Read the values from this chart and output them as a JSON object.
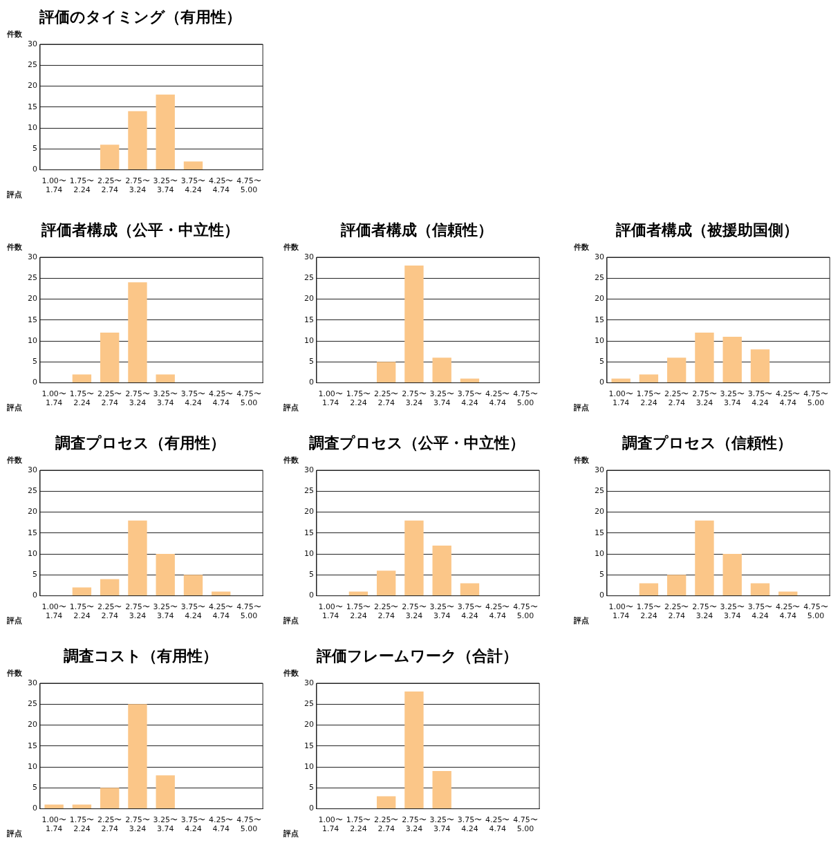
{
  "chart_data": [
    {
      "type": "bar",
      "title": "評価のタイミング（有用性）",
      "ylabel": "件数",
      "xlabel": "評点",
      "categories": [
        "1.00〜\n1.74",
        "1.75〜\n2.24",
        "2.25〜\n2.74",
        "2.75〜\n3.24",
        "3.25〜\n3.74",
        "3.75〜\n4.24",
        "4.25〜\n4.74",
        "4.75〜\n5.00"
      ],
      "values": [
        0,
        0,
        6,
        14,
        18,
        2,
        0,
        0
      ],
      "color": "#fbc688",
      "ylim": [
        0,
        30
      ],
      "yticks": [
        0,
        5,
        10,
        15,
        20,
        25,
        30
      ],
      "grid": "y",
      "legend": false
    },
    {
      "type": "bar",
      "title": "評価者構成（公平・中立性）",
      "ylabel": "件数",
      "xlabel": "評点",
      "categories": [
        "1.00〜\n1.74",
        "1.75〜\n2.24",
        "2.25〜\n2.74",
        "2.75〜\n3.24",
        "3.25〜\n3.74",
        "3.75〜\n4.24",
        "4.25〜\n4.74",
        "4.75〜\n5.00"
      ],
      "values": [
        0,
        2,
        12,
        24,
        2,
        0,
        0,
        0
      ],
      "color": "#fbc688",
      "ylim": [
        0,
        30
      ],
      "yticks": [
        0,
        5,
        10,
        15,
        20,
        25,
        30
      ],
      "grid": "y",
      "legend": false
    },
    {
      "type": "bar",
      "title": "評価者構成（信頼性）",
      "ylabel": "件数",
      "xlabel": "評点",
      "categories": [
        "1.00〜\n1.74",
        "1.75〜\n2.24",
        "2.25〜\n2.74",
        "2.75〜\n3.24",
        "3.25〜\n3.74",
        "3.75〜\n4.24",
        "4.25〜\n4.74",
        "4.75〜\n5.00"
      ],
      "values": [
        0,
        0,
        5,
        28,
        6,
        1,
        0,
        0
      ],
      "color": "#fbc688",
      "ylim": [
        0,
        30
      ],
      "yticks": [
        0,
        5,
        10,
        15,
        20,
        25,
        30
      ],
      "grid": "y",
      "legend": false
    },
    {
      "type": "bar",
      "title": "評価者構成（被援助国側）",
      "ylabel": "件数",
      "xlabel": "評点",
      "categories": [
        "1.00〜\n1.74",
        "1.75〜\n2.24",
        "2.25〜\n2.74",
        "2.75〜\n3.24",
        "3.25〜\n3.74",
        "3.75〜\n4.24",
        "4.25〜\n4.74",
        "4.75〜\n5.00"
      ],
      "values": [
        1,
        2,
        6,
        12,
        11,
        8,
        0,
        0
      ],
      "color": "#fbc688",
      "ylim": [
        0,
        30
      ],
      "yticks": [
        0,
        5,
        10,
        15,
        20,
        25,
        30
      ],
      "grid": "y",
      "legend": false
    },
    {
      "type": "bar",
      "title": "調査プロセス（有用性）",
      "ylabel": "件数",
      "xlabel": "評点",
      "categories": [
        "1.00〜\n1.74",
        "1.75〜\n2.24",
        "2.25〜\n2.74",
        "2.75〜\n3.24",
        "3.25〜\n3.74",
        "3.75〜\n4.24",
        "4.25〜\n4.74",
        "4.75〜\n5.00"
      ],
      "values": [
        0,
        2,
        4,
        18,
        10,
        5,
        1,
        0
      ],
      "color": "#fbc688",
      "ylim": [
        0,
        30
      ],
      "yticks": [
        0,
        5,
        10,
        15,
        20,
        25,
        30
      ],
      "grid": "y",
      "legend": false
    },
    {
      "type": "bar",
      "title": "調査プロセス（公平・中立性）",
      "ylabel": "件数",
      "xlabel": "評点",
      "categories": [
        "1.00〜\n1.74",
        "1.75〜\n2.24",
        "2.25〜\n2.74",
        "2.75〜\n3.24",
        "3.25〜\n3.74",
        "3.75〜\n4.24",
        "4.25〜\n4.74",
        "4.75〜\n5.00"
      ],
      "values": [
        0,
        1,
        6,
        18,
        12,
        3,
        0,
        0
      ],
      "color": "#fbc688",
      "ylim": [
        0,
        30
      ],
      "yticks": [
        0,
        5,
        10,
        15,
        20,
        25,
        30
      ],
      "grid": "y",
      "legend": false
    },
    {
      "type": "bar",
      "title": "調査プロセス（信頼性）",
      "ylabel": "件数",
      "xlabel": "評点",
      "categories": [
        "1.00〜\n1.74",
        "1.75〜\n2.24",
        "2.25〜\n2.74",
        "2.75〜\n3.24",
        "3.25〜\n3.74",
        "3.75〜\n4.24",
        "4.25〜\n4.74",
        "4.75〜\n5.00"
      ],
      "values": [
        0,
        3,
        5,
        18,
        10,
        3,
        1,
        0
      ],
      "color": "#fbc688",
      "ylim": [
        0,
        30
      ],
      "yticks": [
        0,
        5,
        10,
        15,
        20,
        25,
        30
      ],
      "grid": "y",
      "legend": false
    },
    {
      "type": "bar",
      "title": "調査コスト（有用性）",
      "ylabel": "件数",
      "xlabel": "評点",
      "categories": [
        "1.00〜\n1.74",
        "1.75〜\n2.24",
        "2.25〜\n2.74",
        "2.75〜\n3.24",
        "3.25〜\n3.74",
        "3.75〜\n4.24",
        "4.25〜\n4.74",
        "4.75〜\n5.00"
      ],
      "values": [
        1,
        1,
        5,
        25,
        8,
        0,
        0,
        0
      ],
      "color": "#fbc688",
      "ylim": [
        0,
        30
      ],
      "yticks": [
        0,
        5,
        10,
        15,
        20,
        25,
        30
      ],
      "grid": "y",
      "legend": false
    },
    {
      "type": "bar",
      "title": "評価フレームワーク（合計）",
      "ylabel": "件数",
      "xlabel": "評点",
      "categories": [
        "1.00〜\n1.74",
        "1.75〜\n2.24",
        "2.25〜\n2.74",
        "2.75〜\n3.24",
        "3.25〜\n3.74",
        "3.75〜\n4.24",
        "4.25〜\n4.74",
        "4.75〜\n5.00"
      ],
      "values": [
        0,
        0,
        3,
        28,
        9,
        0,
        0,
        0
      ],
      "color": "#fbc688",
      "ylim": [
        0,
        30
      ],
      "yticks": [
        0,
        5,
        10,
        15,
        20,
        25,
        30
      ],
      "grid": "y",
      "legend": false
    }
  ]
}
